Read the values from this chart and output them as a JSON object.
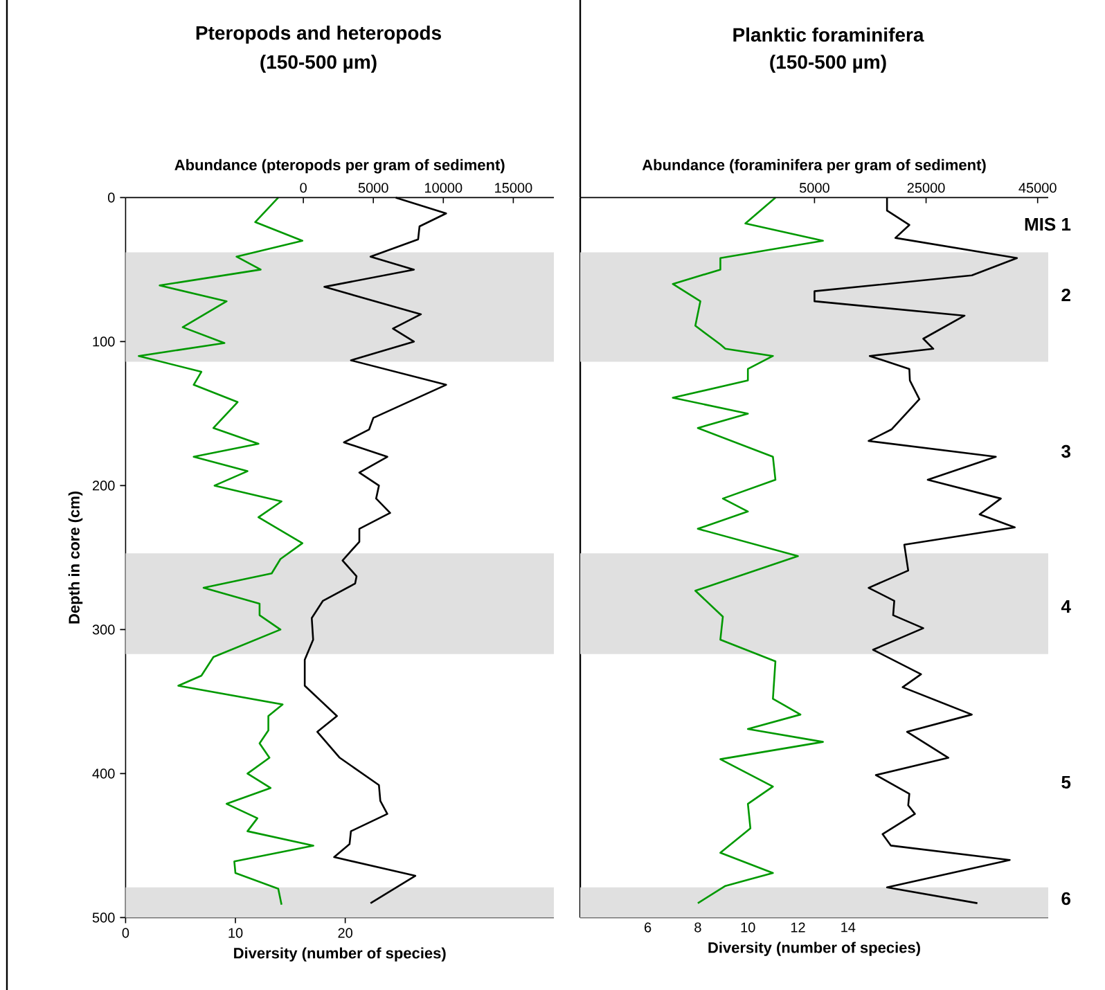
{
  "chart_data": [
    {
      "type": "line",
      "orientation": "horizontal",
      "title": "Pteropods and heteropods",
      "subtitle": "(150-500 µm)",
      "xlabel": "Diversity (number of species)",
      "x2label": "Abundance (pteropods per gram of sediment)",
      "ylabel": "Depth in core (cm)",
      "xlim": [
        0,
        39
      ],
      "xticks": [
        0,
        10,
        20
      ],
      "x2lim": [
        -12700,
        17900
      ],
      "x2ticks": [
        0,
        5000,
        10000,
        15000
      ],
      "ylim": [
        500,
        0
      ],
      "yticks": [
        0,
        100,
        200,
        300,
        400,
        500
      ],
      "bands": [
        {
          "axis": "y",
          "from": 38,
          "to": 114,
          "color": "#e0e0e0"
        },
        {
          "axis": "y",
          "from": 247,
          "to": 317,
          "color": "#e0e0e0"
        },
        {
          "axis": "y",
          "from": 479,
          "to": 500,
          "color": "#e0e0e0"
        }
      ],
      "series": [
        {
          "color": "#009900",
          "x": [
            0,
            17,
            30,
            41,
            50,
            61,
            72,
            90,
            101,
            110,
            121,
            130,
            142,
            160,
            171,
            180,
            190,
            200,
            211,
            222,
            240,
            251,
            261,
            271,
            282,
            290,
            300,
            319,
            332,
            339,
            352,
            360,
            370,
            379,
            389,
            400,
            410,
            421,
            431,
            440,
            450,
            461,
            469,
            480,
            491
          ],
          "values": [
            13.9,
            11.8,
            16.1,
            10.1,
            12.3,
            3.1,
            9.2,
            5.2,
            9.0,
            1.2,
            6.9,
            6.2,
            10.2,
            8.0,
            12.1,
            6.2,
            11.1,
            8.1,
            14.2,
            12.1,
            16.1,
            14.1,
            13.3,
            7.1,
            12.2,
            12.2,
            14.1,
            8.0,
            6.9,
            4.8,
            14.3,
            13.0,
            13.0,
            12.2,
            13.1,
            11.1,
            13.2,
            9.2,
            12.0,
            11.1,
            17.1,
            9.9,
            10.0,
            13.9,
            14.2
          ]
        },
        {
          "color": "#000000",
          "axis": "x2",
          "x": [
            0,
            11,
            20,
            29,
            41,
            50,
            62,
            81,
            91,
            100,
            113,
            130,
            153,
            161,
            170,
            180,
            191,
            200,
            209,
            219,
            230,
            239,
            252,
            263,
            268,
            280,
            292,
            307,
            321,
            339,
            360,
            371,
            389,
            408,
            419,
            428,
            440,
            449,
            458,
            471,
            490
          ],
          "values": [
            6600,
            10200,
            8300,
            8200,
            4800,
            7900,
            1500,
            8400,
            6400,
            7900,
            3400,
            10200,
            5000,
            4700,
            2900,
            6000,
            4000,
            5400,
            5200,
            6200,
            4000,
            4000,
            2800,
            3800,
            3700,
            1400,
            600,
            700,
            100,
            100,
            2400,
            1000,
            2600,
            5400,
            5500,
            6000,
            3400,
            3300,
            2200,
            8000,
            4800
          ]
        }
      ]
    },
    {
      "type": "line",
      "orientation": "horizontal",
      "title": "Planktic foraminifera",
      "subtitle": "(150-500 µm)",
      "xlabel": "Diversity (number of species)",
      "x2label": "Abundance (foraminifera per gram of sediment)",
      "xlim": [
        3.3,
        22
      ],
      "xticks": [
        6,
        8,
        10,
        12,
        14
      ],
      "x2lim": [
        -37000,
        46900
      ],
      "x2ticks": [
        5000,
        25000,
        45000
      ],
      "ylim": [
        500,
        0
      ],
      "tick_labels": "x",
      "bands": [
        {
          "axis": "y",
          "from": 38,
          "to": 114,
          "color": "#e0e0e0"
        },
        {
          "axis": "y",
          "from": 247,
          "to": 317,
          "color": "#e0e0e0"
        },
        {
          "axis": "y",
          "from": 479,
          "to": 500,
          "color": "#e0e0e0"
        }
      ],
      "annotations": [
        "MIS 1",
        "2",
        "3",
        "4",
        "5",
        "6"
      ],
      "series": [
        {
          "color": "#009900",
          "x": [
            0,
            18,
            30,
            42,
            50,
            60,
            72,
            89,
            102,
            105,
            110,
            119,
            127,
            139,
            150,
            160,
            180,
            196,
            209,
            218,
            230,
            249,
            273,
            291,
            307,
            322,
            348,
            359,
            369,
            378,
            390,
            409,
            421,
            438,
            455,
            469,
            478,
            490
          ],
          "values": [
            11.1,
            9.9,
            13.0,
            8.9,
            8.9,
            7.0,
            8.1,
            7.9,
            8.9,
            9.1,
            11.0,
            10.0,
            10.0,
            7.0,
            10.0,
            8.0,
            11.0,
            11.1,
            9.0,
            10.0,
            8.0,
            12.0,
            7.9,
            9.0,
            8.9,
            11.1,
            11.0,
            12.1,
            10.0,
            13.0,
            8.9,
            11.0,
            10.0,
            10.1,
            8.9,
            11.0,
            9.1,
            8.0
          ]
        },
        {
          "color": "#000000",
          "axis": "x2",
          "x": [
            0,
            9,
            19,
            28,
            42,
            54,
            65,
            72,
            82,
            98,
            105,
            110,
            119,
            127,
            140,
            161,
            169,
            180,
            196,
            209,
            220,
            229,
            241,
            259,
            271,
            280,
            290,
            299,
            314,
            331,
            340,
            359,
            371,
            389,
            401,
            414,
            422,
            428,
            442,
            450,
            460,
            479,
            490
          ],
          "values": [
            18000,
            18000,
            22000,
            19500,
            41300,
            33200,
            5000,
            5000,
            31900,
            24500,
            26300,
            14900,
            22000,
            22100,
            23800,
            18800,
            14700,
            37500,
            25300,
            38400,
            34600,
            40900,
            21100,
            21800,
            14700,
            19300,
            19100,
            24500,
            15500,
            24100,
            20800,
            33200,
            21600,
            29000,
            16000,
            22000,
            21800,
            23000,
            17200,
            18700,
            40000,
            18000,
            34200
          ]
        }
      ]
    }
  ]
}
